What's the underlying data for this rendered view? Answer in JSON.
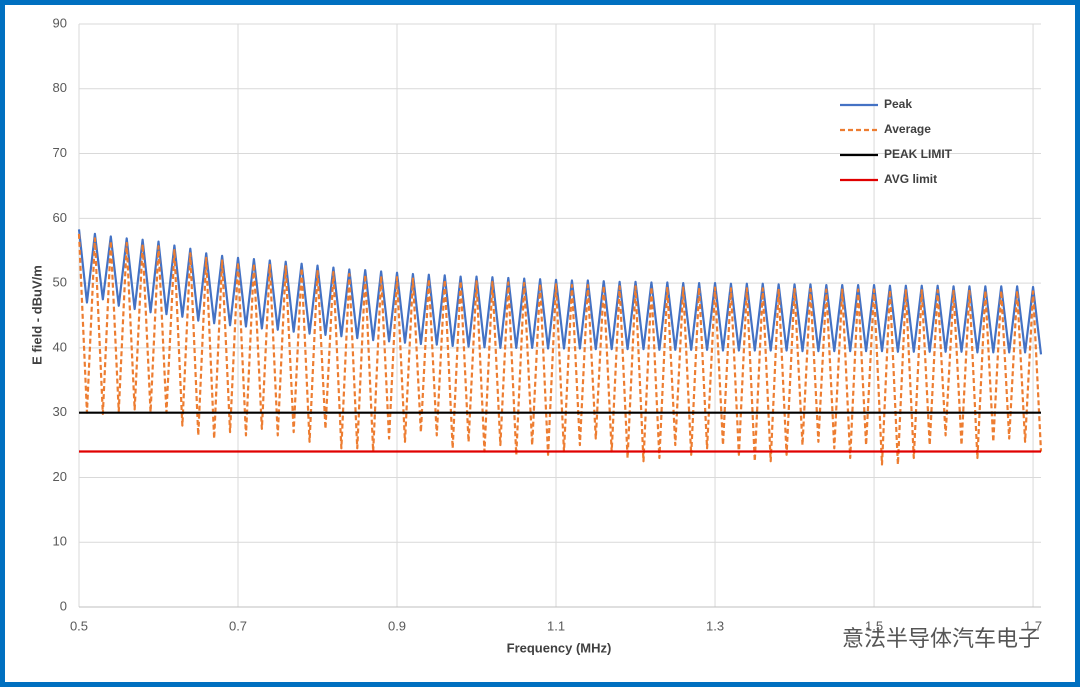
{
  "chart_data": {
    "type": "line",
    "xlabel": "Frequency (MHz)",
    "ylabel": "E field - dBuV/m",
    "x": [
      0.5,
      0.51,
      0.52,
      0.53,
      0.54,
      0.55,
      0.56,
      0.57,
      0.58,
      0.59,
      0.6,
      0.61,
      0.62,
      0.63,
      0.64,
      0.65,
      0.66,
      0.67,
      0.68,
      0.69,
      0.7,
      0.71,
      0.72,
      0.73,
      0.74,
      0.75,
      0.76,
      0.77,
      0.78,
      0.79,
      0.8,
      0.81,
      0.82,
      0.83,
      0.84,
      0.85,
      0.86,
      0.87,
      0.88,
      0.89,
      0.9,
      0.91,
      0.92,
      0.93,
      0.94,
      0.95,
      0.96,
      0.97,
      0.98,
      0.99,
      1.0,
      1.01,
      1.02,
      1.03,
      1.04,
      1.05,
      1.06,
      1.07,
      1.08,
      1.09,
      1.1,
      1.11,
      1.12,
      1.13,
      1.14,
      1.15,
      1.16,
      1.17,
      1.18,
      1.19,
      1.2,
      1.21,
      1.22,
      1.23,
      1.24,
      1.25,
      1.26,
      1.27,
      1.28,
      1.29,
      1.3,
      1.31,
      1.32,
      1.33,
      1.34,
      1.35,
      1.36,
      1.37,
      1.38,
      1.39,
      1.4,
      1.41,
      1.42,
      1.43,
      1.44,
      1.45,
      1.46,
      1.47,
      1.48,
      1.49,
      1.5,
      1.51,
      1.52,
      1.53,
      1.54,
      1.55,
      1.56,
      1.57,
      1.58,
      1.59,
      1.6,
      1.61,
      1.62,
      1.63,
      1.64,
      1.65,
      1.66,
      1.67,
      1.68,
      1.69,
      1.7,
      1.71
    ],
    "series": [
      {
        "name": "Peak",
        "color": "#4472c4",
        "dash": false,
        "values": [
          58.3,
          47.0,
          57.6,
          47.5,
          57.2,
          46.5,
          56.9,
          46.0,
          56.7,
          45.5,
          56.4,
          45.2,
          55.8,
          44.8,
          55.3,
          44.2,
          54.6,
          43.8,
          54.2,
          43.5,
          53.9,
          43.3,
          53.7,
          43.0,
          53.5,
          42.8,
          53.3,
          42.5,
          53.0,
          42.2,
          52.7,
          42.0,
          52.4,
          41.8,
          52.1,
          41.5,
          52.0,
          41.2,
          51.8,
          41.0,
          51.6,
          40.8,
          51.4,
          40.6,
          51.3,
          40.5,
          51.2,
          40.3,
          51.0,
          40.2,
          51.0,
          40.1,
          50.9,
          40.0,
          50.8,
          40.0,
          50.7,
          40.0,
          50.6,
          39.9,
          50.5,
          39.9,
          50.4,
          39.9,
          50.4,
          39.8,
          50.3,
          39.8,
          50.2,
          39.8,
          50.2,
          39.8,
          50.1,
          39.7,
          50.1,
          39.7,
          50.0,
          39.7,
          50.0,
          39.7,
          50.0,
          39.6,
          49.9,
          39.6,
          49.9,
          39.6,
          49.9,
          39.6,
          49.8,
          39.6,
          49.8,
          39.5,
          49.8,
          39.5,
          49.7,
          39.5,
          49.7,
          39.5,
          49.7,
          39.5,
          49.7,
          39.5,
          49.6,
          39.4,
          49.6,
          39.4,
          49.6,
          39.4,
          49.6,
          39.4,
          49.5,
          39.4,
          49.5,
          39.3,
          49.5,
          39.3,
          49.5,
          39.3,
          49.5,
          39.3,
          49.4,
          39.0
        ]
      },
      {
        "name": "Average",
        "color": "#ed7d31",
        "dash": true,
        "values": [
          57.6,
          30.0,
          56.9,
          29.8,
          56.5,
          30.2,
          56.2,
          30.5,
          56.0,
          30.1,
          55.7,
          30.0,
          55.1,
          28.0,
          54.6,
          26.5,
          53.9,
          26.0,
          53.5,
          27.0,
          53.2,
          26.5,
          53.0,
          27.5,
          52.8,
          26.5,
          52.6,
          27.0,
          52.3,
          25.5,
          52.0,
          27.5,
          51.7,
          24.5,
          51.4,
          24.5,
          51.3,
          24.0,
          51.1,
          26.0,
          50.9,
          25.5,
          50.7,
          27.0,
          50.6,
          26.5,
          50.5,
          24.5,
          50.3,
          25.5,
          50.3,
          24.0,
          50.2,
          25.0,
          50.1,
          23.5,
          50.0,
          25.0,
          49.9,
          23.5,
          49.8,
          24.0,
          49.7,
          25.0,
          49.7,
          26.0,
          49.6,
          24.0,
          49.5,
          23.0,
          49.5,
          22.5,
          49.4,
          23.0,
          49.4,
          25.0,
          49.3,
          23.5,
          49.3,
          24.5,
          49.3,
          25.0,
          49.2,
          23.5,
          49.2,
          22.5,
          49.2,
          22.5,
          49.1,
          23.5,
          49.1,
          25.0,
          49.1,
          25.5,
          49.0,
          24.5,
          49.0,
          23.0,
          49.0,
          25.0,
          49.0,
          22.0,
          48.9,
          22.0,
          48.9,
          23.0,
          48.9,
          25.0,
          48.9,
          26.5,
          48.8,
          25.0,
          48.8,
          23.0,
          48.8,
          25.5,
          48.8,
          26.0,
          48.8,
          25.5,
          48.7,
          24.0
        ]
      },
      {
        "name": "PEAK LIMIT",
        "color": "#000000",
        "dash": false,
        "x": [
          0.5,
          1.71
        ],
        "values": [
          30,
          30
        ]
      },
      {
        "name": "AVG limit",
        "color": "#e00000",
        "dash": false,
        "x": [
          0.5,
          1.71
        ],
        "values": [
          24,
          24
        ]
      }
    ],
    "xlim": [
      0.5,
      1.71
    ],
    "xticks": [
      0.5,
      0.7,
      0.9,
      1.1,
      1.3,
      1.5,
      1.7
    ],
    "ylim": [
      0,
      90
    ],
    "yticks": [
      0,
      10,
      20,
      30,
      40,
      50,
      60,
      70,
      80,
      90
    ],
    "grid": true,
    "legend": "upper right",
    "watermark": "意法半导体汽车电子"
  }
}
